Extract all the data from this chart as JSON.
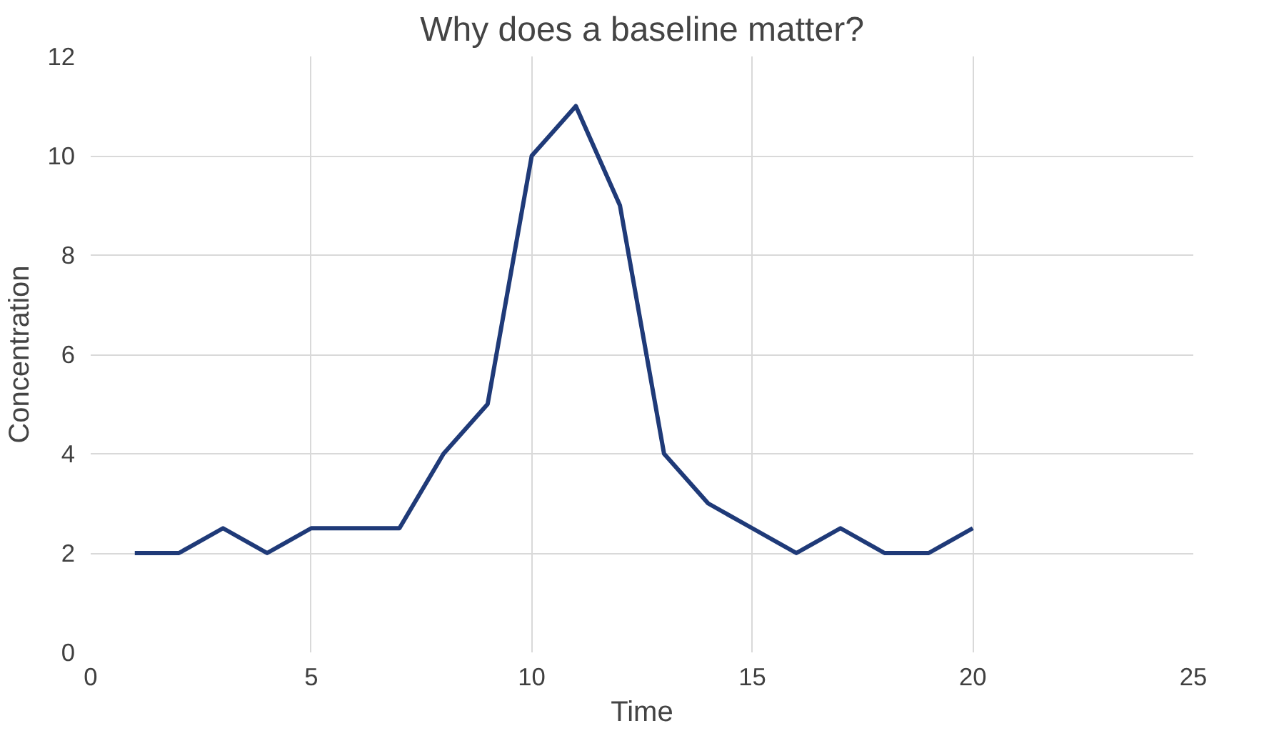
{
  "chart_data": {
    "type": "line",
    "title": "Why does a baseline matter?",
    "xlabel": "Time",
    "ylabel": "Concentration",
    "x": [
      1,
      2,
      3,
      4,
      5,
      6,
      7,
      8,
      9,
      10,
      11,
      12,
      13,
      14,
      15,
      16,
      17,
      18,
      19,
      20
    ],
    "series": [
      {
        "color": "#1f3a78",
        "values": [
          2,
          2,
          2.5,
          2,
          2.5,
          2.5,
          2.5,
          4,
          5,
          10,
          11,
          9,
          4,
          3,
          2.5,
          2,
          2.5,
          2,
          2,
          2.5
        ]
      }
    ],
    "xlim": [
      0,
      25
    ],
    "xticks": [
      0,
      5,
      10,
      15,
      20,
      25
    ],
    "ylim": [
      0,
      12
    ],
    "yticks": [
      0,
      2,
      4,
      6,
      8,
      10,
      12
    ],
    "grid": true,
    "marker": "none",
    "line_style": "solid"
  }
}
